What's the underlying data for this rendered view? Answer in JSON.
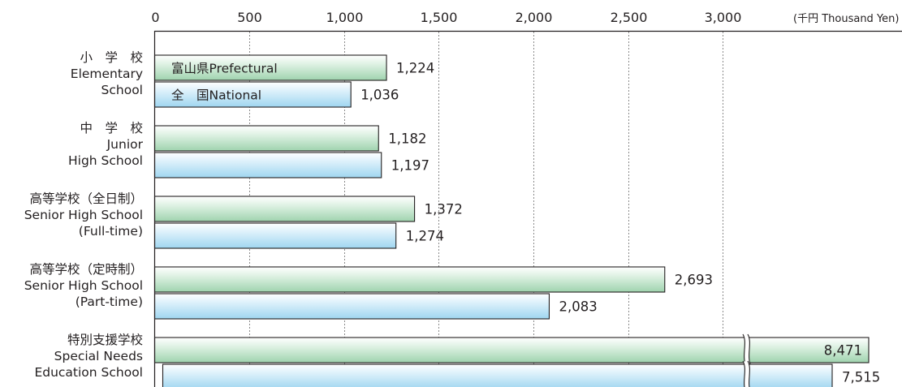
{
  "chart_data": {
    "type": "bar",
    "orientation": "horizontal",
    "unit_label": "(千円 Thousand Yen)",
    "x_ticks": [
      0,
      500,
      1000,
      1500,
      2000,
      2500,
      3000
    ],
    "x_tick_labels": [
      "0",
      "500",
      "1,000",
      "1,500",
      "2,000",
      "2,500",
      "3,000"
    ],
    "xlim": [
      0,
      3000
    ],
    "axis_break": true,
    "grid": true,
    "categories": [
      {
        "lines": [
          "小　学　校",
          "Elementary",
          "School"
        ]
      },
      {
        "lines": [
          "中　学　校",
          "Junior",
          "High School"
        ]
      },
      {
        "lines": [
          "高等学校（全日制）",
          "Senior High School",
          "(Full-time)"
        ]
      },
      {
        "lines": [
          "高等学校（定時制）",
          "Senior High School",
          "(Part-time)"
        ]
      },
      {
        "lines": [
          "特別支援学校",
          "Special Needs",
          "Education School"
        ]
      }
    ],
    "series": [
      {
        "name": "富山県Prefectural",
        "color": "#bfe3c9",
        "values": [
          1224,
          1182,
          1372,
          2693,
          8471
        ],
        "value_labels": [
          "1,224",
          "1,182",
          "1,372",
          "2,693",
          "8,471"
        ]
      },
      {
        "name": "全　国National",
        "color": "#bfe6f7",
        "values": [
          1036,
          1197,
          1274,
          2083,
          7515
        ],
        "value_labels": [
          "1,036",
          "1,197",
          "1,274",
          "2,083",
          "7,515"
        ]
      }
    ]
  }
}
